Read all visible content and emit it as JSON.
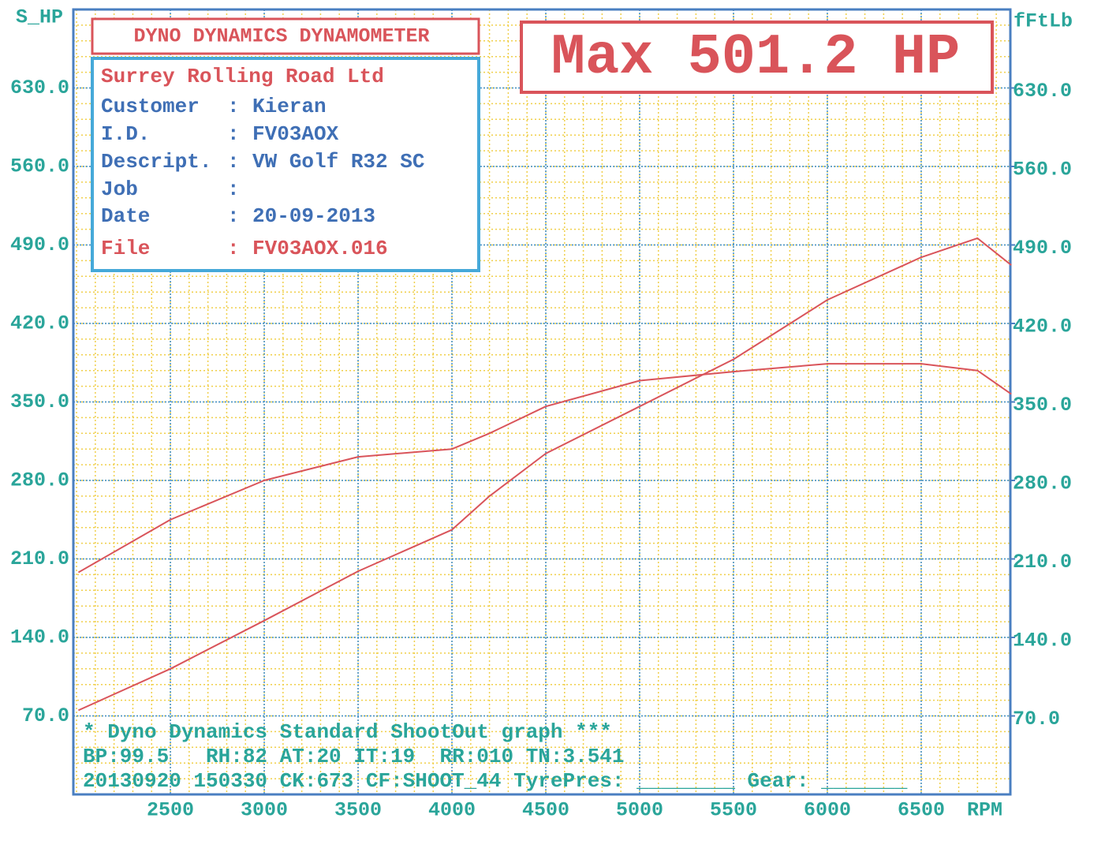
{
  "chart_data": {
    "type": "line",
    "title": "DYNO DYNAMICS DYNAMOMETER",
    "max_label": "Max 501.2 HP",
    "y_label": "S_HP",
    "y2_label": "fFtLb",
    "x_label": "RPM",
    "info": {
      "title": "Surrey Rolling Road Ltd",
      "rows": [
        {
          "label": "Customer",
          "sep": ":",
          "value": "Kieran"
        },
        {
          "label": "I.D.",
          "sep": ":",
          "value": "FV03AOX"
        },
        {
          "label": "Descript.",
          "sep": ":",
          "value": "VW Golf R32 SC"
        },
        {
          "label": "Job",
          "sep": ":"
        },
        {
          "label": "Date",
          "sep": ":",
          "value": "20-09-2013"
        },
        {
          "label": "File",
          "sep": ":",
          "value": "FV03AOX.016"
        }
      ]
    },
    "footer": [
      "* Dyno Dynamics Standard ShootOut graph ***",
      "BP:99.5   RH:82 AT:20 IT:19  RR:010 TN:3.541",
      "20130920 150330 CK:673 CF:SHOOT_44 TyrePres: ________ Gear: _______"
    ],
    "x": [
      2010,
      2500,
      3000,
      3500,
      4000,
      4200,
      4500,
      5000,
      5500,
      6000,
      6500,
      6800,
      6980
    ],
    "series": [
      {
        "color": "#d9545a",
        "values": [
          75,
          112,
          155,
          199,
          236,
          266,
          304,
          346,
          388,
          441,
          479,
          496,
          472
        ]
      },
      {
        "color": "#d9545a",
        "values": [
          198,
          245,
          280,
          301,
          308,
          322,
          346,
          369,
          377,
          384,
          384,
          378,
          357
        ]
      }
    ],
    "xlim": [
      1983,
      6975
    ],
    "xticks": [
      2500,
      3000,
      3500,
      4000,
      4500,
      5000,
      5500,
      6000,
      6500
    ],
    "ylim": [
      0,
      700
    ],
    "yticks": [
      {
        "value": 70,
        "label": "70.0"
      },
      {
        "value": 140,
        "label": "140.0"
      },
      {
        "value": 210,
        "label": "210.0"
      },
      {
        "value": 280,
        "label": "280.0"
      },
      {
        "value": 350,
        "label": "350.0"
      },
      {
        "value": 420,
        "label": "420.0"
      },
      {
        "value": 490,
        "label": "490.0"
      },
      {
        "value": 560,
        "label": "560.0"
      },
      {
        "value": 630,
        "label": "630.0"
      }
    ],
    "y2lim": [
      0,
      700
    ],
    "y2ticks": [
      {
        "value": 70,
        "label": "70.0"
      },
      {
        "value": 140,
        "label": "140.0"
      },
      {
        "value": 210,
        "label": "210.0"
      },
      {
        "value": 280,
        "label": "280.0"
      },
      {
        "value": 350,
        "label": "350.0"
      },
      {
        "value": 420,
        "label": "420.0"
      },
      {
        "value": 490,
        "label": "490.0"
      },
      {
        "value": 560,
        "label": "560.0"
      },
      {
        "value": 630,
        "label": "630.0"
      }
    ],
    "grid": true,
    "minor_grid": true
  }
}
